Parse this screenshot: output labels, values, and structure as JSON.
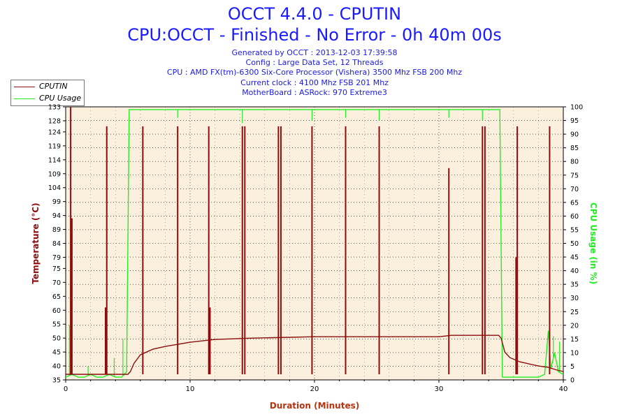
{
  "header": {
    "title": "OCCT 4.4.0 - CPUTIN",
    "subtitle": "CPU:OCCT - Finished - No Error - 0h 40m 00s",
    "info_lines": [
      "Generated by OCCT : 2013-12-03 17:39:58",
      "Config : Large Data Set, 12 Threads",
      "CPU : AMD FX(tm)-6300 Six-Core Processor (Vishera) 3500 Mhz FSB 200 Mhz",
      "Current clock : 4100 Mhz FSB 201 Mhz",
      "MotherBoard : ASRock: 970 Extreme3"
    ]
  },
  "colors": {
    "temperature": "#8b0d0d",
    "cpu_usage": "#22ee22",
    "title": "#1a1aff",
    "axis_label_x": "#b83210",
    "plot_bg": "#fbf0dd",
    "grid": "#000000"
  },
  "chart_data": {
    "type": "line",
    "xlabel": "Duration (Minutes)",
    "ylabel_left": "Temperature (°C)",
    "ylabel_right": "CPU Usage (in %)",
    "xlim": [
      0,
      40
    ],
    "ylim_left": [
      35,
      133
    ],
    "ylim_right": [
      0,
      100
    ],
    "x_ticks": [
      "0",
      "10",
      "20",
      "30",
      "40"
    ],
    "y_left_ticks": [
      35,
      40,
      45,
      50,
      55,
      60,
      65,
      70,
      75,
      79,
      84,
      89,
      94,
      99,
      104,
      109,
      114,
      119,
      124,
      128,
      133
    ],
    "y_right_ticks": [
      0,
      5,
      10,
      15,
      20,
      25,
      30,
      35,
      40,
      45,
      50,
      55,
      60,
      65,
      70,
      75,
      80,
      85,
      90,
      95,
      100
    ],
    "grid": true,
    "legend_position": "top-left",
    "series": [
      {
        "name": "CPUTIN",
        "axis": "left",
        "x": [
          0,
          0.3,
          0.5,
          0.6,
          3.2,
          3.3,
          5.0,
          5.2,
          5.5,
          6.0,
          7.0,
          8.0,
          10.0,
          12.0,
          15.0,
          18.0,
          20.0,
          25.0,
          30.0,
          31.0,
          34.8,
          35.0,
          35.3,
          35.7,
          36.5,
          38.0,
          38.8,
          39.5,
          40.0
        ],
        "values": [
          37,
          37,
          37,
          37,
          37,
          37,
          37,
          38,
          41,
          44,
          46,
          47,
          48.5,
          49.5,
          50,
          50.3,
          50.5,
          50.5,
          50.5,
          51,
          51,
          50,
          45,
          43,
          41.5,
          40,
          39.5,
          38.5,
          38
        ],
        "spikes": [
          {
            "x": 0.4,
            "to": 133
          },
          {
            "x": 0.5,
            "to": 93
          },
          {
            "x": 3.2,
            "to": 61
          },
          {
            "x": 3.3,
            "to": 126
          },
          {
            "x": 6.2,
            "to": 126
          },
          {
            "x": 9.0,
            "to": 126
          },
          {
            "x": 11.5,
            "to": 126
          },
          {
            "x": 11.6,
            "to": 61
          },
          {
            "x": 14.2,
            "to": 126
          },
          {
            "x": 14.4,
            "to": 126
          },
          {
            "x": 17.1,
            "to": 126
          },
          {
            "x": 17.3,
            "to": 126
          },
          {
            "x": 19.8,
            "to": 126
          },
          {
            "x": 22.5,
            "to": 126
          },
          {
            "x": 25.2,
            "to": 126
          },
          {
            "x": 30.8,
            "to": 111
          },
          {
            "x": 33.5,
            "to": 126
          },
          {
            "x": 33.7,
            "to": 126
          },
          {
            "x": 36.2,
            "to": 79
          },
          {
            "x": 36.3,
            "to": 126
          },
          {
            "x": 38.9,
            "to": 126
          }
        ]
      },
      {
        "name": "CPU Usage",
        "axis": "right",
        "x": [
          0,
          0.5,
          1.0,
          1.5,
          2.0,
          2.5,
          3.0,
          3.5,
          4.0,
          4.5,
          4.9,
          5.0,
          5.1,
          8.0,
          10.0,
          15.0,
          20.0,
          25.0,
          30.0,
          34.9,
          35.0,
          35.1,
          36.0,
          37.0,
          38.0,
          38.5,
          38.8,
          39.0,
          39.3,
          39.6,
          40.0
        ],
        "values": [
          1,
          2,
          1,
          1,
          2,
          1,
          1,
          2,
          1,
          1,
          3,
          50,
          99,
          99,
          99,
          99,
          99,
          99,
          99,
          99,
          50,
          1,
          1,
          1,
          1,
          2,
          18,
          4,
          10,
          3,
          2
        ],
        "dips": [
          {
            "x": 0.3,
            "to": 20
          },
          {
            "x": 1.8,
            "to": 5
          },
          {
            "x": 3.9,
            "to": 8
          },
          {
            "x": 4.6,
            "to": 15
          },
          {
            "x": 9.0,
            "to": 96
          },
          {
            "x": 14.2,
            "to": 94
          },
          {
            "x": 19.8,
            "to": 95
          },
          {
            "x": 22.5,
            "to": 96
          },
          {
            "x": 25.2,
            "to": 95
          },
          {
            "x": 30.8,
            "to": 96
          },
          {
            "x": 33.5,
            "to": 95
          },
          {
            "x": 38.7,
            "to": 12
          },
          {
            "x": 39.2,
            "to": 16
          },
          {
            "x": 39.7,
            "to": 14
          }
        ]
      }
    ]
  }
}
